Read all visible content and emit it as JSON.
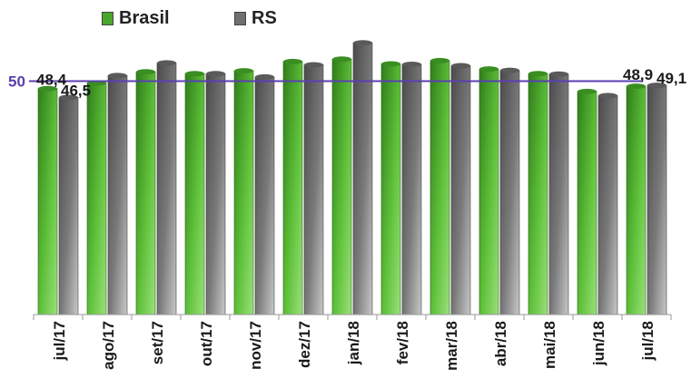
{
  "chart_data": {
    "type": "bar",
    "categories": [
      "jul/17",
      "ago/17",
      "set/17",
      "out/17",
      "nov/17",
      "dez/17",
      "jan/18",
      "fev/18",
      "mar/18",
      "abr/18",
      "mai/18",
      "jun/18",
      "jul/18"
    ],
    "series": [
      {
        "name": "Brasil",
        "color": "#4aa52b",
        "values": [
          48.4,
          49.6,
          52.0,
          51.6,
          52.2,
          54.2,
          54.7,
          53.7,
          54.4,
          52.6,
          51.6,
          47.8,
          48.9
        ]
      },
      {
        "name": "RS",
        "color": "#6f6f6f",
        "values": [
          46.5,
          51.2,
          53.9,
          51.6,
          50.9,
          53.5,
          58.2,
          53.6,
          53.3,
          52.3,
          51.5,
          46.9,
          49.1
        ]
      }
    ],
    "reference_line": {
      "value": 50,
      "label": "50",
      "color": "#5b3fb0"
    },
    "data_labels": [
      {
        "series": 0,
        "index": 0,
        "text": "48,4"
      },
      {
        "series": 1,
        "index": 0,
        "text": "46,5"
      },
      {
        "series": 0,
        "index": 12,
        "text": "48,9"
      },
      {
        "series": 1,
        "index": 12,
        "text": "49,1"
      }
    ],
    "ylim": [
      0,
      60
    ],
    "y_axis_visible": false,
    "grid": false,
    "legend": {
      "placement": "top-left",
      "entries": [
        "Brasil",
        "RS"
      ]
    },
    "title": "",
    "xlabel": "",
    "ylabel": ""
  }
}
